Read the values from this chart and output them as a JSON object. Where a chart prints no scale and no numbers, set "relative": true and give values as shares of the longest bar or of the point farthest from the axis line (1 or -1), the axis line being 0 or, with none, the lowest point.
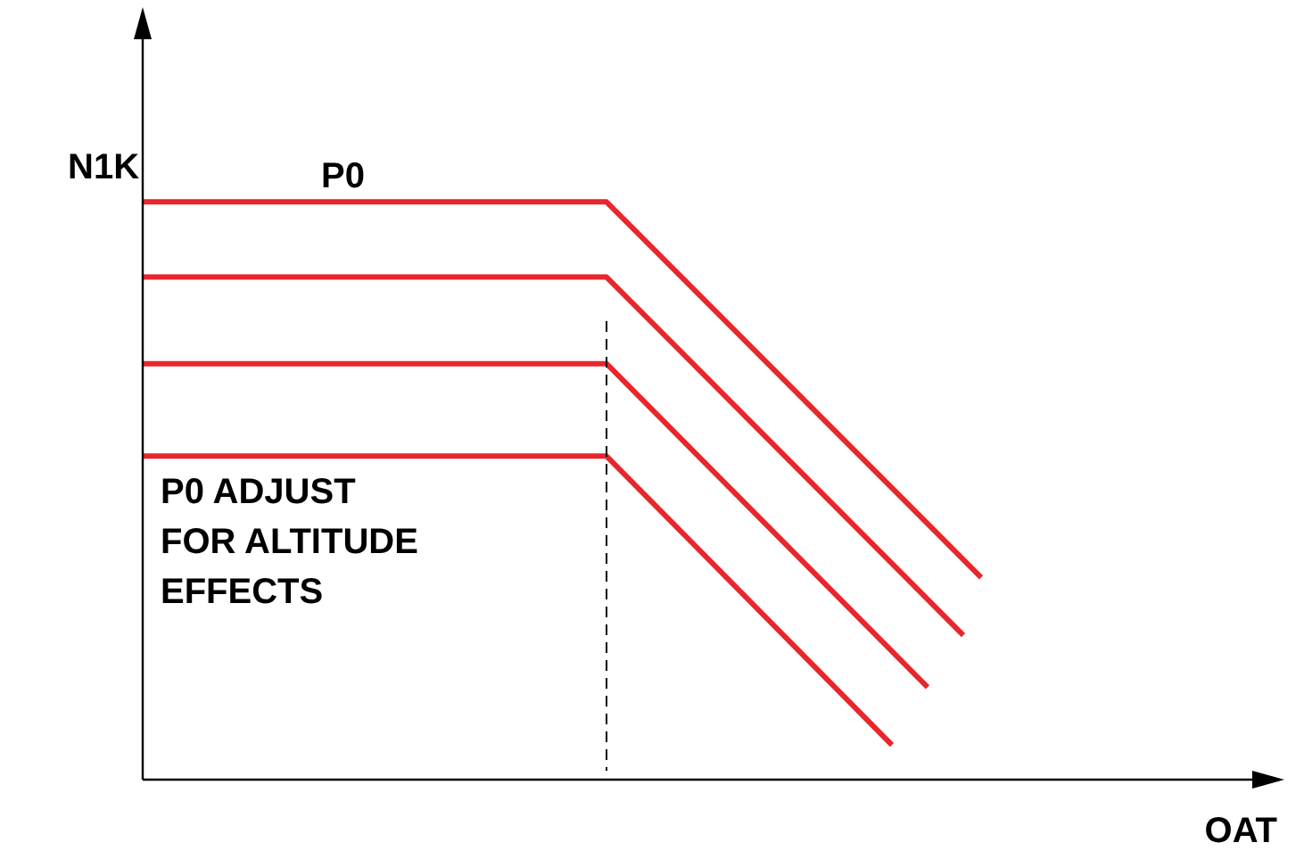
{
  "chart_data": {
    "type": "line",
    "relative": true,
    "xlabel": "OAT",
    "ylabel": "N1K",
    "marker": "none",
    "line_style": "solid",
    "categories": [
      null,
      null,
      null,
      null,
      null,
      null,
      null,
      null,
      null,
      null,
      null,
      null,
      null,
      null,
      null,
      null,
      null,
      null,
      null,
      null,
      null,
      null,
      null,
      null,
      null,
      null,
      null,
      null,
      null,
      null,
      null,
      null,
      null,
      null,
      null,
      null,
      null,
      null,
      null,
      null,
      null,
      null,
      null,
      null,
      null,
      null,
      null,
      null,
      null,
      null,
      null,
      null,
      null,
      null,
      null,
      null,
      null,
      null,
      null,
      null,
      null,
      null,
      null,
      null
    ],
    "series": [
      {
        "name": "P0",
        "color": "#e8262b",
        "values": [
          1,
          null,
          null,
          null,
          null,
          null,
          null,
          null,
          null,
          null,
          null,
          null,
          null,
          null,
          null,
          null,
          null,
          null,
          null,
          null,
          null,
          null,
          null,
          null,
          null,
          null,
          1,
          null,
          null,
          null,
          null,
          null,
          null,
          null,
          null,
          null,
          null,
          null,
          null,
          null,
          null,
          null,
          null,
          null,
          null,
          null,
          null,
          0.35,
          null,
          null,
          null,
          null,
          null,
          null,
          null,
          null,
          null,
          null,
          null,
          null,
          null,
          null,
          null,
          null
        ]
      },
      {
        "color": "#e8262b",
        "values": [
          0.87,
          null,
          null,
          null,
          null,
          null,
          null,
          null,
          null,
          null,
          null,
          null,
          null,
          null,
          null,
          null,
          null,
          null,
          null,
          null,
          null,
          null,
          null,
          null,
          null,
          null,
          0.87,
          null,
          null,
          null,
          null,
          null,
          null,
          null,
          null,
          null,
          null,
          null,
          null,
          null,
          null,
          null,
          null,
          null,
          null,
          null,
          0.25,
          null,
          null,
          null,
          null,
          null,
          null,
          null,
          null,
          null,
          null,
          null,
          null,
          null,
          null,
          null,
          null,
          null
        ]
      },
      {
        "color": "#e8262b",
        "values": [
          0.72,
          null,
          null,
          null,
          null,
          null,
          null,
          null,
          null,
          null,
          null,
          null,
          null,
          null,
          null,
          null,
          null,
          null,
          null,
          null,
          null,
          null,
          null,
          null,
          null,
          null,
          0.72,
          null,
          null,
          null,
          null,
          null,
          null,
          null,
          null,
          null,
          null,
          null,
          null,
          null,
          null,
          null,
          null,
          null,
          0.16,
          null,
          null,
          null,
          null,
          null,
          null,
          null,
          null,
          null,
          null,
          null,
          null,
          null,
          null,
          null,
          null,
          null,
          null,
          null
        ]
      },
      {
        "color": "#e8262b",
        "values": [
          0.56,
          null,
          null,
          null,
          null,
          null,
          null,
          null,
          null,
          null,
          null,
          null,
          null,
          null,
          null,
          null,
          null,
          null,
          null,
          null,
          null,
          null,
          null,
          null,
          null,
          null,
          0.56,
          null,
          null,
          null,
          null,
          null,
          null,
          null,
          null,
          null,
          null,
          null,
          null,
          null,
          null,
          null,
          0.06,
          null,
          null,
          null,
          null,
          null,
          null,
          null,
          null,
          null,
          null,
          null,
          null,
          null,
          null,
          null,
          null,
          null,
          null,
          null,
          null,
          null
        ]
      }
    ],
    "annotations": [
      "P0 ADJUST\nFOR ALTITUDE\nEFFECTS"
    ]
  }
}
